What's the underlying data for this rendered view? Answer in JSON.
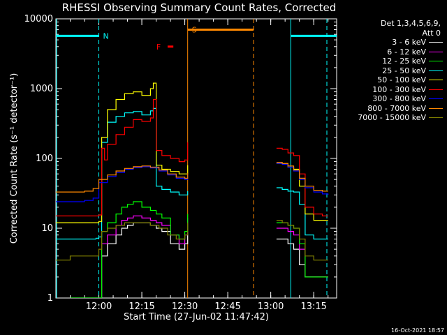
{
  "title": "RHESSI Observing Summary Count Rates, Corrected",
  "footer_timestamp": "16-Oct-2021 18:57",
  "chart_data": {
    "type": "line",
    "title": "RHESSI Observing Summary Count Rates, Corrected",
    "xlabel": "Start Time (27-Jun-02 11:47:42)",
    "ylabel": "Corrected Count Rate (s⁻¹ detector⁻¹)",
    "yscale": "log",
    "ylim": [
      1,
      10000
    ],
    "xlim": [
      -5,
      93
    ],
    "x_units": "minutes after 11:50",
    "y_ticks": [
      1,
      10,
      100,
      1000,
      10000
    ],
    "y_tick_labels": [
      "1",
      "10",
      "100",
      "1000",
      "10000"
    ],
    "x_ticks": [
      10,
      25,
      40,
      55,
      70,
      85
    ],
    "x_tick_labels": [
      "12:00",
      "12:15",
      "12:30",
      "12:45",
      "13:00",
      "13:15"
    ],
    "legend_header": [
      "Det 1,3,4,5,6,9,",
      "Att 0"
    ],
    "series": [
      {
        "name": "3 - 6 keV",
        "color": "#ffffff",
        "x": [
          0,
          5,
          6,
          10,
          11,
          13,
          16,
          18,
          20,
          22,
          25,
          28,
          30,
          32,
          35,
          38,
          40,
          41,
          70,
          72,
          74,
          76,
          78,
          80,
          82,
          85,
          88,
          90
        ],
        "y": [
          0,
          0,
          0,
          0,
          4,
          6,
          8,
          10,
          11,
          12,
          12,
          11,
          10,
          9,
          6,
          5,
          6,
          12,
          null,
          7,
          7,
          6,
          5,
          3,
          2,
          2,
          2,
          2
        ]
      },
      {
        "name": "6 - 12 keV",
        "color": "#ff00ff",
        "x": [
          0,
          10,
          11,
          13,
          16,
          18,
          20,
          22,
          25,
          28,
          30,
          32,
          35,
          38,
          40,
          41,
          70,
          72,
          74,
          76,
          78,
          80,
          82,
          85,
          88,
          90
        ],
        "y": [
          0,
          0,
          6,
          8,
          11,
          13,
          14,
          15,
          14,
          13,
          12,
          11,
          8,
          6,
          8,
          14,
          null,
          10,
          10,
          9,
          8,
          5,
          2,
          2,
          2,
          2
        ]
      },
      {
        "name": "12 - 25 keV",
        "color": "#00ff00",
        "x": [
          0,
          10,
          11,
          13,
          16,
          18,
          20,
          22,
          25,
          28,
          30,
          32,
          35,
          38,
          40,
          41,
          70,
          72,
          74,
          76,
          78,
          80,
          82,
          85,
          88,
          90
        ],
        "y": [
          0,
          0,
          9,
          12,
          16,
          20,
          22,
          24,
          20,
          18,
          16,
          14,
          8,
          7,
          9,
          16,
          null,
          12,
          12,
          11,
          10,
          6,
          2,
          2,
          2,
          2
        ]
      },
      {
        "name": "25 - 50 keV",
        "color": "#00ffff",
        "x": [
          -5,
          0,
          2,
          4,
          6,
          8,
          9,
          10,
          11,
          13,
          16,
          19,
          22,
          25,
          28,
          29,
          30,
          32,
          35,
          38,
          40,
          41,
          70,
          72,
          74,
          76,
          78,
          80,
          82,
          85,
          88,
          90
        ],
        "y": [
          7,
          7,
          7,
          7,
          7,
          7,
          7.2,
          7.5,
          170,
          330,
          400,
          450,
          470,
          420,
          480,
          520,
          40,
          36,
          33,
          30,
          30,
          34,
          null,
          38,
          36,
          34,
          33,
          22,
          8,
          7,
          7,
          7
        ]
      },
      {
        "name": "50 - 100 keV",
        "color": "#ffff00",
        "x": [
          -5,
          0,
          4,
          8,
          9,
          10,
          11,
          13,
          16,
          19,
          22,
          25,
          28,
          29,
          30,
          32,
          35,
          38,
          40,
          41,
          70,
          72,
          74,
          76,
          78,
          80,
          82,
          85,
          88,
          90
        ],
        "y": [
          12,
          12,
          12,
          12,
          12,
          12.5,
          200,
          500,
          700,
          850,
          900,
          800,
          1000,
          1200,
          80,
          70,
          65,
          60,
          60,
          80,
          null,
          85,
          85,
          75,
          70,
          40,
          16,
          13,
          13,
          13
        ]
      },
      {
        "name": "100 - 300 keV",
        "color": "#ff0000",
        "x": [
          -5,
          0,
          4,
          8,
          9,
          10,
          11,
          12,
          13,
          16,
          19,
          22,
          25,
          28,
          29,
          30,
          32,
          35,
          38,
          40,
          41,
          70,
          72,
          74,
          76,
          78,
          80,
          82,
          85,
          88,
          90
        ],
        "y": [
          15,
          15,
          15,
          15,
          15,
          15.5,
          140,
          95,
          160,
          220,
          280,
          360,
          340,
          380,
          700,
          130,
          110,
          100,
          90,
          95,
          170,
          null,
          140,
          135,
          120,
          110,
          60,
          20,
          16,
          15,
          15
        ]
      },
      {
        "name": "300 - 800 keV",
        "color": "#0000ff",
        "x": [
          -5,
          0,
          5,
          8,
          10,
          13,
          16,
          19,
          22,
          25,
          28,
          31,
          34,
          37,
          40,
          41,
          70,
          72,
          74,
          76,
          78,
          80,
          82,
          85,
          88,
          90
        ],
        "y": [
          24,
          24,
          25,
          27,
          45,
          55,
          63,
          70,
          74,
          76,
          73,
          66,
          58,
          52,
          50,
          60,
          null,
          85,
          82,
          75,
          66,
          50,
          38,
          33,
          31,
          30
        ]
      },
      {
        "name": "800 - 7000 keV",
        "color": "#ff8800",
        "x": [
          -5,
          0,
          5,
          8,
          10,
          13,
          16,
          19,
          22,
          25,
          28,
          31,
          34,
          37,
          40,
          41,
          70,
          72,
          74,
          76,
          78,
          80,
          82,
          85,
          88,
          90
        ],
        "y": [
          33,
          33,
          34,
          37,
          50,
          58,
          66,
          72,
          76,
          78,
          75,
          68,
          60,
          54,
          52,
          62,
          null,
          88,
          85,
          78,
          68,
          52,
          40,
          35,
          34,
          34
        ]
      },
      {
        "name": "7000 - 15000 keV",
        "color": "#808000",
        "x": [
          -5,
          -3,
          0,
          4,
          8,
          10,
          11,
          13,
          16,
          19,
          22,
          25,
          28,
          31,
          34,
          37,
          40,
          41,
          70,
          72,
          74,
          76,
          78,
          80,
          82,
          85,
          88,
          90
        ],
        "y": [
          3.5,
          3.5,
          4,
          4,
          4,
          5,
          9,
          10,
          11,
          12,
          12,
          12,
          11,
          10,
          8,
          7,
          8,
          12,
          null,
          13,
          12,
          11,
          10,
          7,
          4,
          3.5,
          3.5,
          3.5
        ]
      }
    ],
    "annotations": [
      {
        "label": "N",
        "color": "#00ffff",
        "x": 10,
        "y": 5700
      },
      {
        "label": "S",
        "color": "#ff8800",
        "x": 41,
        "y": 7000
      },
      {
        "label": "F",
        "color": "#ff0000",
        "x": 33,
        "y": 4000
      }
    ],
    "night_intervals": [
      [
        -5,
        10
      ],
      [
        77,
        93
      ]
    ],
    "saa_interval": [
      41,
      64
    ],
    "flare_interval": [
      34,
      36
    ]
  }
}
